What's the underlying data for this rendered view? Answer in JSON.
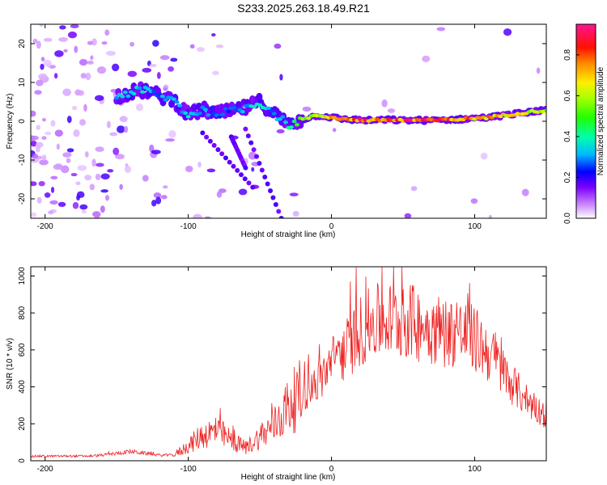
{
  "title": "S233.2025.263.18.49.R21",
  "chart_data": [
    {
      "type": "heatmap",
      "name": "spectrogram",
      "xlabel": "Height of straight line (km)",
      "ylabel": "Frequency (Hz)",
      "xlim": [
        -210,
        150
      ],
      "ylim": [
        -25,
        25
      ],
      "xticks": [
        -200,
        -100,
        0,
        100
      ],
      "yticks": [
        -20,
        -10,
        0,
        10,
        20
      ],
      "colorbar": {
        "label": "Normalized spectral amplitude",
        "range": [
          0,
          0.95
        ],
        "ticks": [
          0.0,
          0.2,
          0.4,
          0.6,
          0.8
        ]
      },
      "track": {
        "heights": [
          -150,
          -140,
          -130,
          -120,
          -110,
          -100,
          -90,
          -80,
          -70,
          -60,
          -50,
          -40,
          -30,
          -20,
          -10,
          0,
          10,
          20,
          30,
          40,
          50,
          60,
          70,
          80,
          90,
          100,
          110,
          120,
          130,
          140,
          150
        ],
        "frequency": [
          6.5,
          7.5,
          8.0,
          6.5,
          5.5,
          1.5,
          3.0,
          2.0,
          2.5,
          3.5,
          5.0,
          2.0,
          -1.0,
          0.5,
          1.5,
          1.0,
          0.5,
          0.3,
          0.2,
          0.4,
          0.2,
          0.3,
          0.2,
          0.4,
          0.5,
          0.8,
          1.0,
          1.5,
          2.0,
          2.5,
          2.8
        ],
        "amplitude": [
          0.3,
          0.35,
          0.35,
          0.3,
          0.3,
          0.35,
          0.3,
          0.3,
          0.3,
          0.35,
          0.4,
          0.3,
          0.4,
          0.55,
          0.6,
          0.7,
          0.8,
          0.85,
          0.85,
          0.85,
          0.85,
          0.85,
          0.85,
          0.85,
          0.8,
          0.75,
          0.75,
          0.7,
          0.65,
          0.65,
          0.6
        ]
      }
    },
    {
      "type": "line",
      "name": "snr",
      "xlabel": "Height of straight line (km)",
      "ylabel": "SNR (10 * v/v)",
      "xlim": [
        -210,
        150
      ],
      "ylim": [
        0,
        1050
      ],
      "xticks": [
        -200,
        -100,
        0,
        100
      ],
      "yticks": [
        0,
        200,
        400,
        600,
        800,
        1000
      ],
      "color": "#ee2020",
      "series": [
        {
          "name": "SNR",
          "x": [
            -210,
            -200,
            -190,
            -180,
            -170,
            -160,
            -150,
            -140,
            -130,
            -120,
            -110,
            -100,
            -90,
            -80,
            -70,
            -60,
            -50,
            -40,
            -30,
            -20,
            -10,
            0,
            10,
            20,
            30,
            40,
            50,
            60,
            70,
            80,
            90,
            100,
            110,
            120,
            130,
            140,
            150
          ],
          "values": [
            25,
            25,
            25,
            25,
            25,
            30,
            40,
            50,
            40,
            30,
            30,
            80,
            140,
            160,
            110,
            70,
            130,
            190,
            300,
            370,
            420,
            530,
            600,
            700,
            750,
            760,
            760,
            740,
            720,
            700,
            690,
            660,
            580,
            480,
            380,
            300,
            240
          ]
        }
      ]
    }
  ]
}
